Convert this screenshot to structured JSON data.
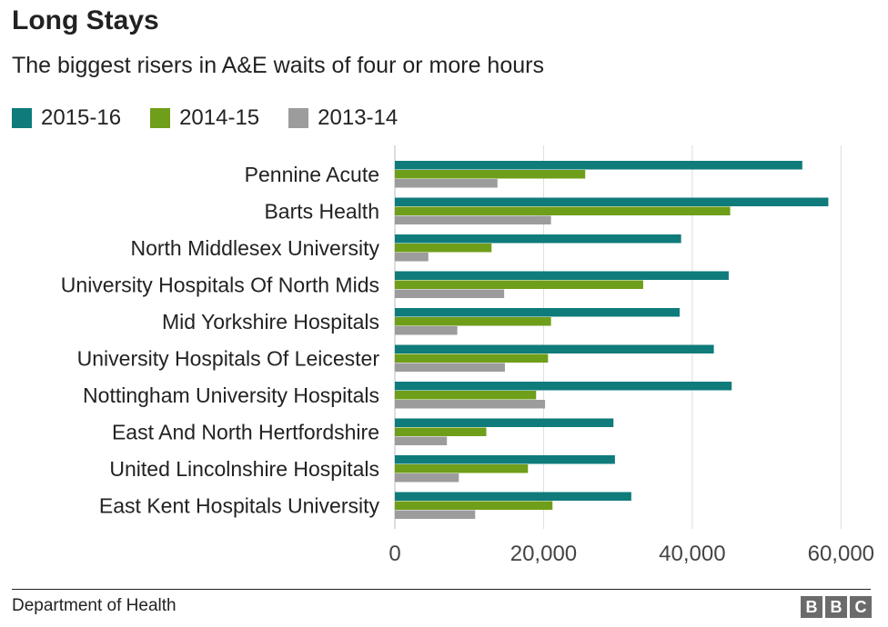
{
  "header": {
    "title": "Long Stays",
    "subtitle": "The biggest risers in A&E waits of four or more hours"
  },
  "legend": [
    {
      "label": "2015-16",
      "color": "#0f7b7b"
    },
    {
      "label": "2014-15",
      "color": "#6f9e1a"
    },
    {
      "label": "2013-14",
      "color": "#9c9c9c"
    }
  ],
  "footer": {
    "source": "Department of Health",
    "logo_letters": [
      "B",
      "B",
      "C"
    ]
  },
  "chart_data": {
    "type": "bar",
    "orientation": "horizontal",
    "title": "Long Stays",
    "subtitle": "The biggest risers in A&E waits of four or more hours",
    "xlabel": "",
    "ylabel": "",
    "xlim": [
      0,
      64000
    ],
    "xticks": [
      0,
      20000,
      40000,
      60000
    ],
    "xtick_labels": [
      "0",
      "20,000",
      "40,000",
      "60,000"
    ],
    "grid": true,
    "legend_position": "top-left",
    "categories": [
      "Pennine Acute",
      "Barts Health",
      "North Middlesex University",
      "University Hospitals Of North Mids",
      "Mid Yorkshire Hospitals",
      "University Hospitals Of Leicester",
      "Nottingham University Hospitals",
      "East And North Hertfordshire",
      "United Lincolnshire Hospitals",
      "East Kent Hospitals University"
    ],
    "series": [
      {
        "name": "2015-16",
        "color": "#0f7b7b",
        "values": [
          54800,
          58300,
          38500,
          44900,
          38300,
          42900,
          45300,
          29400,
          29600,
          31800
        ]
      },
      {
        "name": "2014-15",
        "color": "#6f9e1a",
        "values": [
          25600,
          45100,
          13000,
          33400,
          21000,
          20600,
          19000,
          12300,
          17900,
          21200
        ]
      },
      {
        "name": "2013-14",
        "color": "#9c9c9c",
        "values": [
          13800,
          21000,
          4500,
          14700,
          8400,
          14800,
          20200,
          7000,
          8600,
          10800
        ]
      }
    ]
  }
}
